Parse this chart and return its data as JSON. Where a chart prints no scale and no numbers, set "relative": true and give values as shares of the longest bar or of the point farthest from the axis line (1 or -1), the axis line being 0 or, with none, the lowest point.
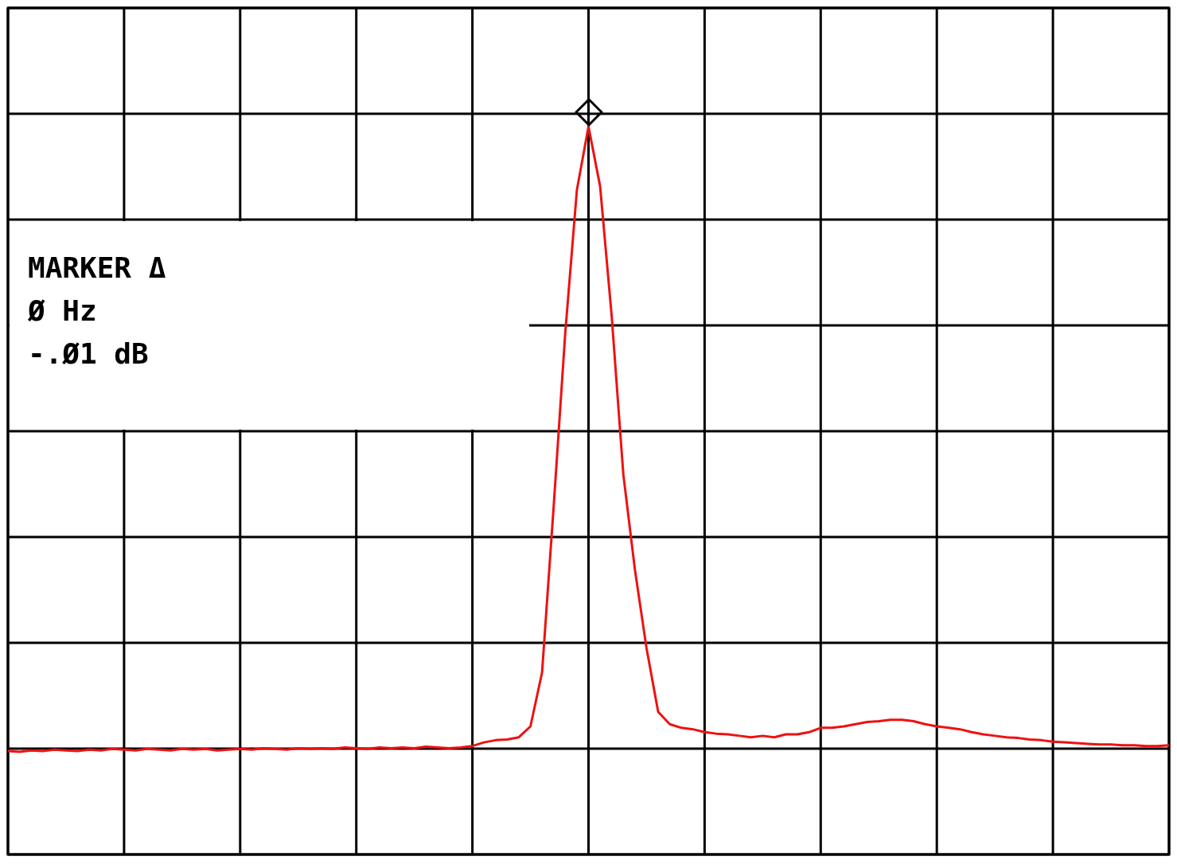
{
  "chart_data": {
    "type": "line",
    "relative": true,
    "grid": true,
    "legend": false,
    "categories": [
      null,
      null,
      null,
      null,
      null,
      null,
      null,
      null,
      null,
      null,
      null,
      null,
      null,
      null,
      null,
      null,
      null,
      null,
      null,
      null,
      null,
      null,
      null,
      null,
      null,
      null,
      null,
      null,
      null,
      null,
      null,
      null,
      null,
      null,
      null,
      null,
      null,
      null,
      null,
      null,
      null,
      null,
      null,
      null,
      null,
      null,
      null,
      null,
      null,
      null,
      null,
      null,
      null,
      null,
      null,
      null,
      null,
      null,
      null,
      null,
      null,
      null,
      null,
      null,
      null,
      null,
      null,
      null,
      null,
      null,
      null,
      null,
      null,
      null,
      null,
      null,
      null,
      null,
      null,
      null,
      null,
      null,
      null,
      null,
      null,
      null,
      null,
      null,
      null,
      null,
      null,
      null,
      null,
      null,
      null,
      null,
      null,
      null,
      null,
      null,
      null
    ],
    "annotations": [
      "MARKER Δ",
      "Ø Hz",
      "-.Ø1 dB"
    ],
    "series": [
      {
        "color": "#ee1111",
        "marker": "none",
        "values": [
          0.142,
          0.141,
          0.143,
          0.142,
          0.144,
          0.143,
          0.142,
          0.144,
          0.143,
          0.145,
          0.144,
          0.143,
          0.145,
          0.144,
          0.143,
          0.145,
          0.144,
          0.145,
          0.143,
          0.144,
          0.145,
          0.144,
          0.146,
          0.145,
          0.144,
          0.146,
          0.145,
          0.146,
          0.145,
          0.147,
          0.146,
          0.145,
          0.147,
          0.146,
          0.147,
          0.146,
          0.148,
          0.147,
          0.146,
          0.147,
          0.149,
          0.154,
          0.157,
          0.158,
          0.161,
          0.176,
          0.25,
          0.478,
          0.717,
          0.913,
          1,
          0.918,
          0.739,
          0.522,
          0.391,
          0.283,
          0.196,
          0.179,
          0.174,
          0.172,
          0.168,
          0.166,
          0.165,
          0.163,
          0.161,
          0.163,
          0.161,
          0.165,
          0.165,
          0.168,
          0.174,
          0.174,
          0.176,
          0.179,
          0.182,
          0.183,
          0.185,
          0.185,
          0.183,
          0.179,
          0.176,
          0.174,
          0.172,
          0.168,
          0.165,
          0.163,
          0.161,
          0.16,
          0.158,
          0.157,
          0.155,
          0.154,
          0.153,
          0.152,
          0.151,
          0.151,
          0.15,
          0.15,
          0.149,
          0.149,
          0.15
        ]
      }
    ]
  }
}
